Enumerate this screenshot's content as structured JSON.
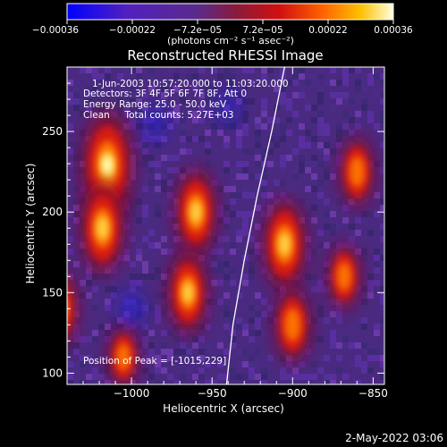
{
  "chart_data": {
    "type": "heatmap",
    "title": "Reconstructed RHESSI Image",
    "xlabel": "Heliocentric X (arcsec)",
    "ylabel": "Heliocentric Y (arcsec)",
    "xlim": [
      -1040,
      -843
    ],
    "ylim": [
      93,
      290
    ],
    "x_ticks": [
      -1000,
      -950,
      -900,
      -850
    ],
    "x_tick_labels": [
      "−1000",
      "−950",
      "−900",
      "−850"
    ],
    "y_ticks": [
      100,
      150,
      200,
      250
    ],
    "y_tick_labels": [
      "100",
      "150",
      "200",
      "250"
    ],
    "colorbar": {
      "range": [
        -0.00036,
        0.00036
      ],
      "tick_labels": [
        "−0.00036",
        "−0.00022",
        "−7.2e−05",
        "7.2e−05",
        "0.00022",
        "0.00036"
      ],
      "units_label": "(photons cm⁻² s⁻¹ asec⁻²)",
      "colors": [
        "#0000ff",
        "#6a2fb0",
        "#5a2b8a",
        "#8a1a3a",
        "#d01010",
        "#ff5a00",
        "#ffb000",
        "#ffff80",
        "#ffffff"
      ]
    },
    "info_lines": [
      "1-Jun-2003 10:57:20.000 to 11:03:20.000",
      "Detectors: 3F 4F 5F 6F 7F 8F, Att 0",
      "Energy Range: 25.0 - 50.0 keV",
      "Clean     Total counts: 5.27E+03"
    ],
    "peak_label": "Position of Peak = [-1015,229]",
    "peak_position": [
      -1015,
      229
    ],
    "limb": [
      [
        -941,
        93
      ],
      [
        -937,
        130
      ],
      [
        -930,
        170
      ],
      [
        -922,
        210
      ],
      [
        -913,
        250
      ],
      [
        -905,
        290
      ]
    ],
    "bright_sources": [
      {
        "x": -1015,
        "y": 229,
        "level": 1.0
      },
      {
        "x": -1018,
        "y": 190,
        "level": 0.8
      },
      {
        "x": -960,
        "y": 200,
        "level": 0.75
      },
      {
        "x": -965,
        "y": 150,
        "level": 0.7
      },
      {
        "x": -1045,
        "y": 140,
        "level": 0.65
      },
      {
        "x": -905,
        "y": 180,
        "level": 0.8
      },
      {
        "x": -900,
        "y": 130,
        "level": 0.6
      },
      {
        "x": -860,
        "y": 225,
        "level": 0.55
      },
      {
        "x": -868,
        "y": 160,
        "level": 0.5
      },
      {
        "x": -1005,
        "y": 110,
        "level": 0.45
      }
    ],
    "dim_sources": [
      {
        "x": -1000,
        "y": 140,
        "level": 0.6
      },
      {
        "x": -985,
        "y": 255,
        "level": 0.5
      },
      {
        "x": -940,
        "y": 265,
        "level": 0.45
      }
    ]
  },
  "footer_date": "2-May-2022 03:06"
}
